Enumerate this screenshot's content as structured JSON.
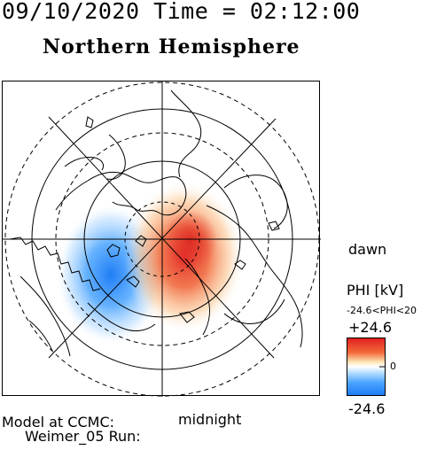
{
  "header": {
    "datetime": "09/10/2020 Time = 02:12:00",
    "hemisphere": "Northern Hemisphere"
  },
  "plot": {
    "dawn_label": "dawn",
    "midnight_label": "midnight",
    "negative_color": "#2f8fff",
    "positive_color": "#e63a2a"
  },
  "legend": {
    "quantity_label": "PHI [kV]",
    "range_text": "-24.6<PHI<20",
    "max_label": "+24.6",
    "zero_label": "0",
    "min_label": "-24.6"
  },
  "footer": {
    "model_line": "Model at CCMC:",
    "run_line": "Weimer_05 Run:"
  }
}
